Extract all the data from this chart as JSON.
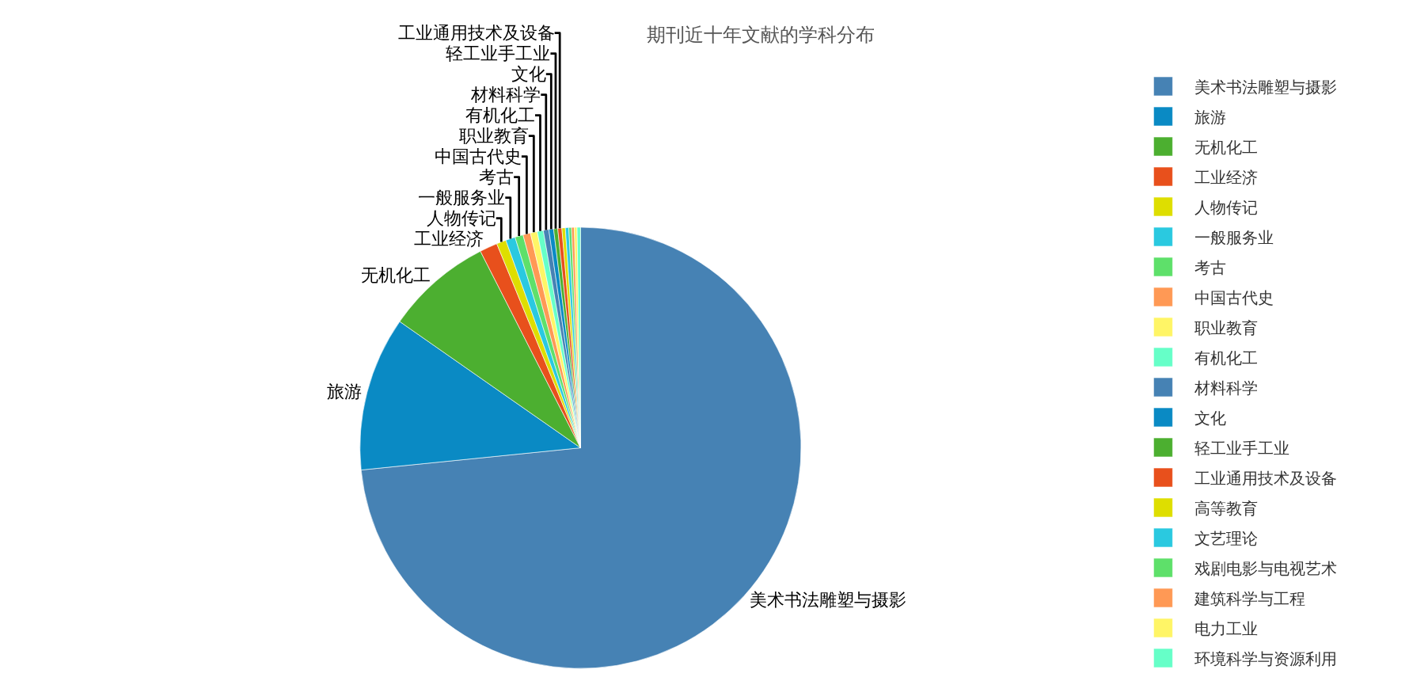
{
  "chart_data": {
    "type": "pie",
    "title": "期刊近十年文献的学科分布",
    "categories": [
      "美术书法雕塑与摄影",
      "旅游",
      "无机化工",
      "工业经济",
      "人物传记",
      "一般服务业",
      "考古",
      "中国古代史",
      "职业教育",
      "有机化工",
      "材料科学",
      "文化",
      "轻工业手工业",
      "工业通用技术及设备",
      "高等教育",
      "文艺理论",
      "戏剧电影与电视艺术",
      "建筑科学与工程",
      "电力工业",
      "环境科学与资源利用"
    ],
    "values": [
      73.4,
      11.3,
      7.8,
      1.3,
      0.7,
      0.7,
      0.6,
      0.55,
      0.5,
      0.45,
      0.4,
      0.35,
      0.3,
      0.3,
      0.25,
      0.25,
      0.2,
      0.2,
      0.2,
      0.25
    ],
    "colors": [
      "#4682b4",
      "#0a8ac4",
      "#4caf30",
      "#e8501c",
      "#dede00",
      "#2ac9e0",
      "#5ee06a",
      "#ff9955",
      "#fff566",
      "#66ffc8",
      "#4682b4",
      "#0a8ac4",
      "#4caf30",
      "#e8501c",
      "#dede00",
      "#2ac9e0",
      "#5ee06a",
      "#ff9955",
      "#fff566",
      "#66ffc8"
    ],
    "value_labels": [
      "美术书法雕塑与摄影",
      "旅游",
      "无机化工",
      "工业经济",
      "人物传记",
      "一般服务业",
      "考古",
      "中国古代史",
      "职业教育",
      "有机化工",
      "材料科学",
      "文化",
      "轻工业手工业",
      "工业通用技术及设备",
      null,
      null,
      null,
      null,
      null,
      null
    ],
    "legend": "right"
  }
}
